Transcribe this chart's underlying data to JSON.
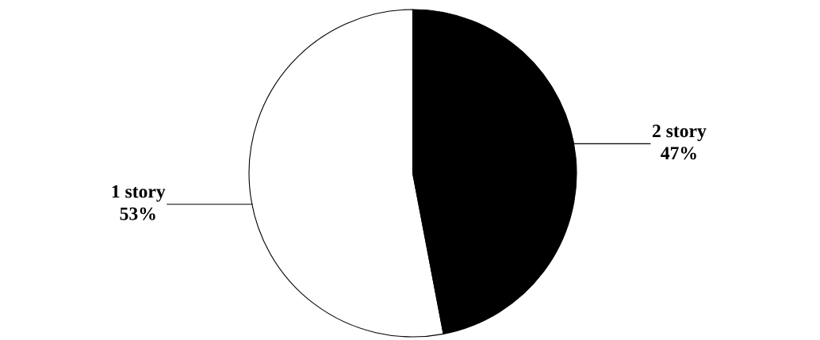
{
  "chart_data": {
    "type": "pie",
    "categories": [
      "1 story",
      "2 story"
    ],
    "values": [
      53,
      47
    ],
    "value_labels": [
      "53%",
      "47%"
    ],
    "colors": [
      "#ffffff",
      "#000000"
    ]
  }
}
